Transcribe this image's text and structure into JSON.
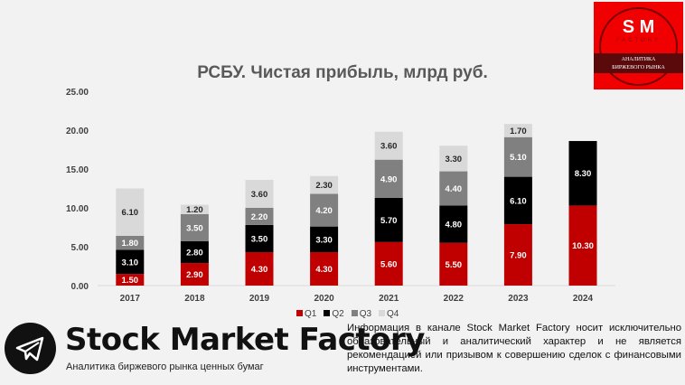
{
  "chart_data": {
    "type": "bar",
    "stacked": true,
    "title": "РСБУ. Чистая прибыль, млрд руб.",
    "categories": [
      "2017",
      "2018",
      "2019",
      "2020",
      "2021",
      "2022",
      "2023",
      "2024"
    ],
    "ylim": [
      0,
      25
    ],
    "yticks": [
      "0.00",
      "5.00",
      "10.00",
      "15.00",
      "20.00",
      "25.00"
    ],
    "grid": false,
    "legend_position": "bottom",
    "series": [
      {
        "name": "Q1",
        "color": "#c00000",
        "label_color": "#ffffff",
        "values": [
          1.5,
          2.9,
          4.3,
          4.3,
          5.6,
          5.5,
          7.9,
          10.3
        ]
      },
      {
        "name": "Q2",
        "color": "#000000",
        "label_color": "#ffffff",
        "values": [
          3.1,
          2.8,
          3.5,
          3.3,
          5.7,
          4.8,
          6.1,
          8.3
        ]
      },
      {
        "name": "Q3",
        "color": "#808080",
        "label_color": "#ffffff",
        "values": [
          1.8,
          3.5,
          2.2,
          4.2,
          4.9,
          4.4,
          5.1,
          null
        ]
      },
      {
        "name": "Q4",
        "color": "#d9d9d9",
        "label_color": "#262626",
        "values": [
          6.1,
          1.2,
          3.6,
          2.3,
          3.6,
          3.3,
          1.7,
          null
        ]
      }
    ]
  },
  "logo": {
    "letters": "S M",
    "factory": "FACTORY",
    "line1": "АНАЛИТИКА",
    "line2": "БИРЖЕВОГО РЫНКА"
  },
  "brand": {
    "name": "Stock Market Factory",
    "tagline": "Аналитика биржевого рынка ценных бумаг",
    "icon": "telegram-icon"
  },
  "disclaimer": "Информация в канале Stock Market Factory носит исключительно образовательный и аналитический характер и не является рекомендацией или призывом к совершению сделок с финансовыми инструментами."
}
